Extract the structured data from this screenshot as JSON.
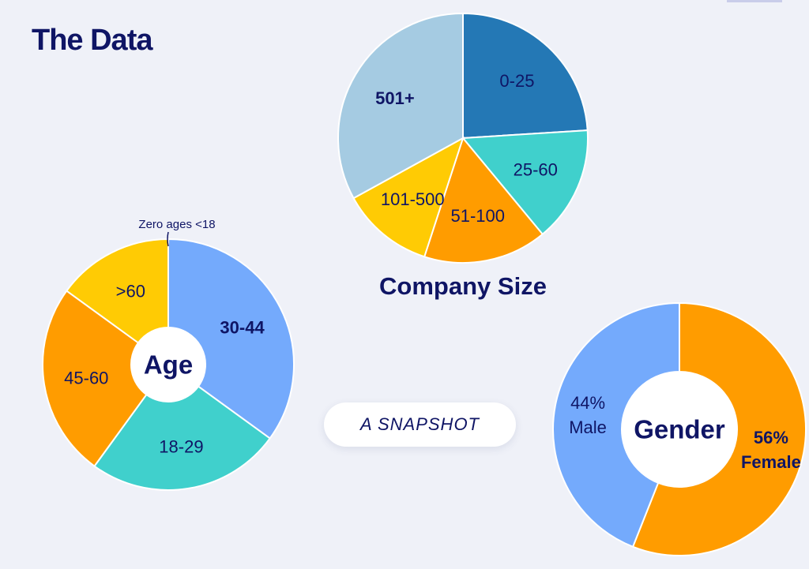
{
  "page": {
    "title": "The Data",
    "snapshot_label": "A SNAPSHOT"
  },
  "colors": {
    "navy": "#0f1565",
    "background": "#eff1f8"
  },
  "chart_data": [
    {
      "type": "pie",
      "id": "company-size",
      "title": "Company Size",
      "categories": [
        "0-25",
        "25-60",
        "51-100",
        "101-500",
        "501+"
      ],
      "values": [
        24,
        15,
        16,
        12,
        33
      ],
      "colors": [
        "#2478b5",
        "#40d0cc",
        "#ff9c00",
        "#ffcb04",
        "#a5cbe2"
      ],
      "bold_labels": [
        "501+"
      ]
    },
    {
      "type": "donut",
      "id": "age",
      "title": "Age",
      "categories": [
        "30-44",
        "18-29",
        "45-60",
        ">60"
      ],
      "values": [
        35,
        25,
        25,
        15
      ],
      "colors": [
        "#74aafc",
        "#40d0cc",
        "#ff9c00",
        "#ffcb04"
      ],
      "bold_labels": [
        "30-44"
      ],
      "annotation": "Zero ages <18"
    },
    {
      "type": "donut",
      "id": "gender",
      "title": "Gender",
      "categories": [
        "56%",
        "44%"
      ],
      "sublabels": [
        "Female",
        "Male"
      ],
      "values": [
        56,
        44
      ],
      "colors": [
        "#ff9c00",
        "#74aafc"
      ],
      "bold_labels": [
        "56%"
      ]
    }
  ]
}
